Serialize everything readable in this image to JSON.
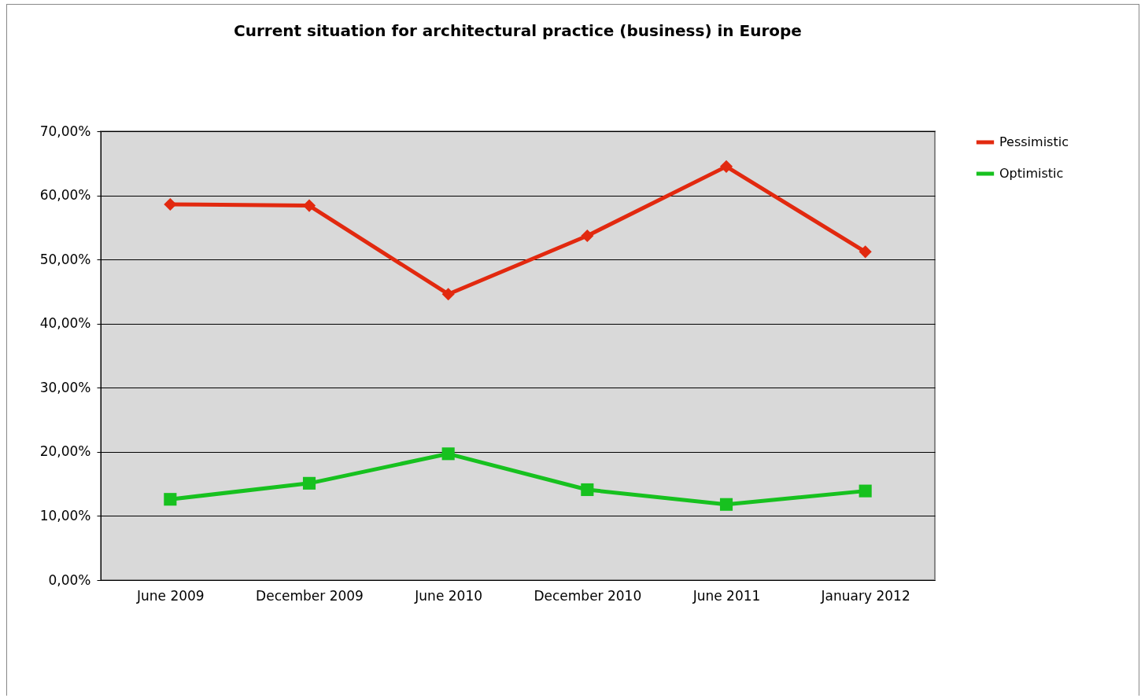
{
  "chart_data": {
    "type": "line",
    "title": "Current situation for architectural practice (business) in Europe",
    "categories": [
      "June 2009",
      "December 2009",
      "June 2010",
      "December 2010",
      "June 2011",
      "January 2012"
    ],
    "series": [
      {
        "name": "Pessimistic",
        "color": "#e2290f",
        "marker": "diamond",
        "values": [
          58.6,
          58.4,
          44.6,
          53.7,
          64.5,
          51.2
        ]
      },
      {
        "name": "Optimistic",
        "color": "#17c11f",
        "marker": "square",
        "values": [
          12.6,
          15.1,
          19.7,
          14.1,
          11.8,
          13.9
        ]
      }
    ],
    "ylim": [
      0,
      70
    ],
    "yticks": [
      {
        "value": 0,
        "label": "0,00%"
      },
      {
        "value": 10,
        "label": "10,00%"
      },
      {
        "value": 20,
        "label": "20,00%"
      },
      {
        "value": 30,
        "label": "30,00%"
      },
      {
        "value": 40,
        "label": "40,00%"
      },
      {
        "value": 50,
        "label": "50,00%"
      },
      {
        "value": 60,
        "label": "60,00%"
      },
      {
        "value": 70,
        "label": "70,00%"
      }
    ],
    "grid": "y",
    "legend": "right",
    "line_style": "solid"
  }
}
